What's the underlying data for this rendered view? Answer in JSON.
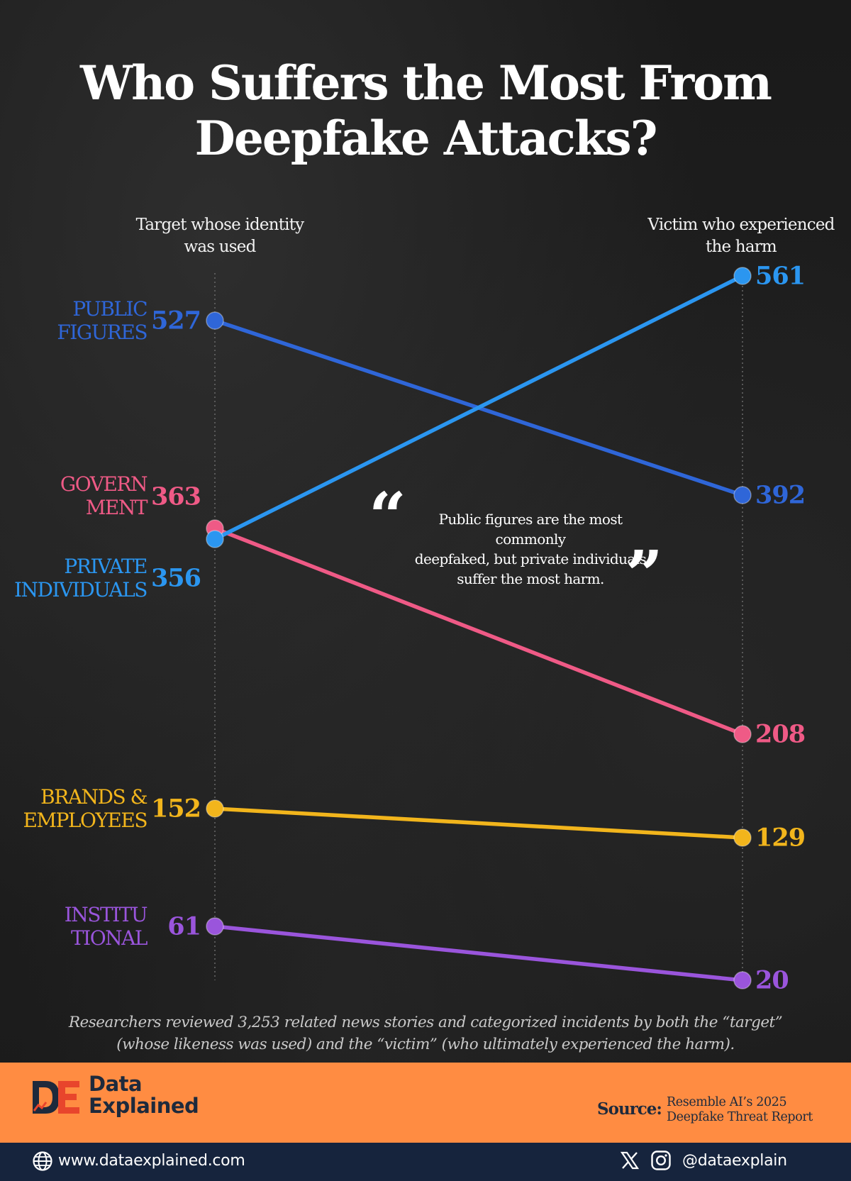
{
  "title_line1": "Who Suffers the Most From",
  "title_line2": "Deepfake Attacks?",
  "colors": {
    "public_figures": "#2f66d8",
    "government": "#ef5a86",
    "private_individuals": "#2b96f0",
    "brands_employees": "#f2b51c",
    "institutional": "#9a55dc",
    "orange_band": "#ff8c42",
    "navy": "#16243d"
  },
  "chart_data": {
    "type": "slope",
    "left_axis_label": "Target whose identity was used",
    "right_axis_label": "Victim who experienced the harm",
    "series": [
      {
        "name": "PUBLIC FIGURES",
        "label_lines": [
          "PUBLIC",
          "FIGURES"
        ],
        "target": 527,
        "victim": 392,
        "color": "#2f66d8"
      },
      {
        "name": "GOVERNMENT",
        "label_lines": [
          "GOVERN",
          "MENT"
        ],
        "target": 363,
        "victim": 208,
        "color": "#ef5a86"
      },
      {
        "name": "PRIVATE INDIVIDUALS",
        "label_lines": [
          "PRIVATE",
          "INDIVIDUALS"
        ],
        "target": 356,
        "victim": 561,
        "color": "#2b96f0"
      },
      {
        "name": "BRANDS & EMPLOYEES",
        "label_lines": [
          "BRANDS &",
          "EMPLOYEES"
        ],
        "target": 152,
        "victim": 129,
        "color": "#f2b51c"
      },
      {
        "name": "INSTITUTIONAL",
        "label_lines": [
          "INSTITU",
          "TIONAL"
        ],
        "target": 61,
        "victim": 20,
        "color": "#9a55dc"
      }
    ]
  },
  "quote": {
    "open_mark": "“",
    "close_mark": "”",
    "line1": "Public figures are the most commonly",
    "line2": "deepfaked, but private individuals",
    "line3": "suffer the most harm."
  },
  "footnote_line1": "Researchers reviewed 3,253 related news stories and categorized incidents by both the “target”",
  "footnote_line2": "(whose likeness was used) and the “victim” (who ultimately experienced the harm).",
  "brand": {
    "line1": "Data",
    "line2": "Explained"
  },
  "source": {
    "label": "Source:",
    "line1": "Resemble AI’s 2025",
    "line2": "Deepfake Threat Report"
  },
  "footer": {
    "website": "www.dataexplained.com",
    "handle": "@dataexplain",
    "icons": [
      "globe-icon",
      "x-icon",
      "instagram-icon"
    ]
  }
}
